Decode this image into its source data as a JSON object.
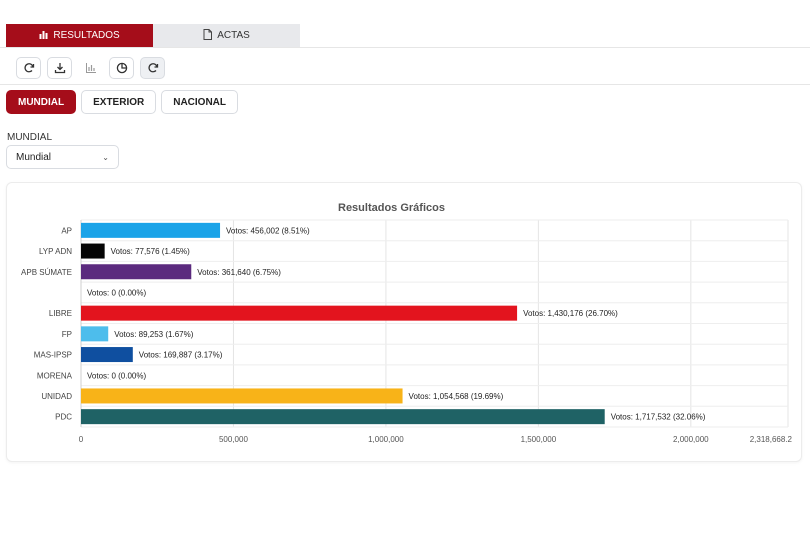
{
  "tabs": [
    {
      "label": "RESULTADOS",
      "icon": "bar-chart-icon",
      "active": true
    },
    {
      "label": "ACTAS",
      "icon": "document-icon",
      "active": false
    }
  ],
  "toolbar": [
    "refresh-icon",
    "download-icon",
    "bar-chart-icon",
    "pie-chart-icon",
    "refresh-icon"
  ],
  "scope_buttons": [
    {
      "label": "MUNDIAL",
      "active": true
    },
    {
      "label": "EXTERIOR",
      "active": false
    },
    {
      "label": "NACIONAL",
      "active": false
    }
  ],
  "filter": {
    "label": "MUNDIAL",
    "value": "Mundial"
  },
  "colors": {
    "accent": "#a50d1a"
  },
  "chart_data": {
    "type": "bar",
    "orientation": "horizontal",
    "title": "Resultados Gráficos",
    "categories": [
      "AP",
      "LYP ADN",
      "APB SÚMATE",
      "",
      "LIBRE",
      "FP",
      "MAS-IPSP",
      "MORENA",
      "UNIDAD",
      "PDC"
    ],
    "values": [
      456002,
      77576,
      361640,
      0,
      1430176,
      89253,
      169887,
      0,
      1054568,
      1717532
    ],
    "data_labels": [
      "Votos: 456,002 (8.51%)",
      "Votos: 77,576 (1.45%)",
      "Votos: 361,640 (6.75%)",
      "Votos: 0 (0.00%)",
      "Votos: 1,430,176 (26.70%)",
      "Votos: 89,253 (1.67%)",
      "Votos: 169,887 (3.17%)",
      "Votos: 0 (0.00%)",
      "Votos: 1,054,568 (19.69%)",
      "Votos: 1,717,532 (32.06%)"
    ],
    "colors": [
      "#1aa3e8",
      "#050505",
      "#5b2a7e",
      "#cccccc",
      "#e3141e",
      "#4dbdec",
      "#0f4fa0",
      "#999999",
      "#f8b318",
      "#1f6265"
    ],
    "xlim": [
      0,
      2318668.2
    ],
    "x_ticks": [
      0,
      500000,
      1000000,
      1500000,
      2000000,
      2318668.2
    ],
    "x_tick_labels": [
      "0",
      "500,000",
      "1,000,000",
      "1,500,000",
      "2,000,000",
      "2,318,668.2"
    ],
    "grid": true
  }
}
